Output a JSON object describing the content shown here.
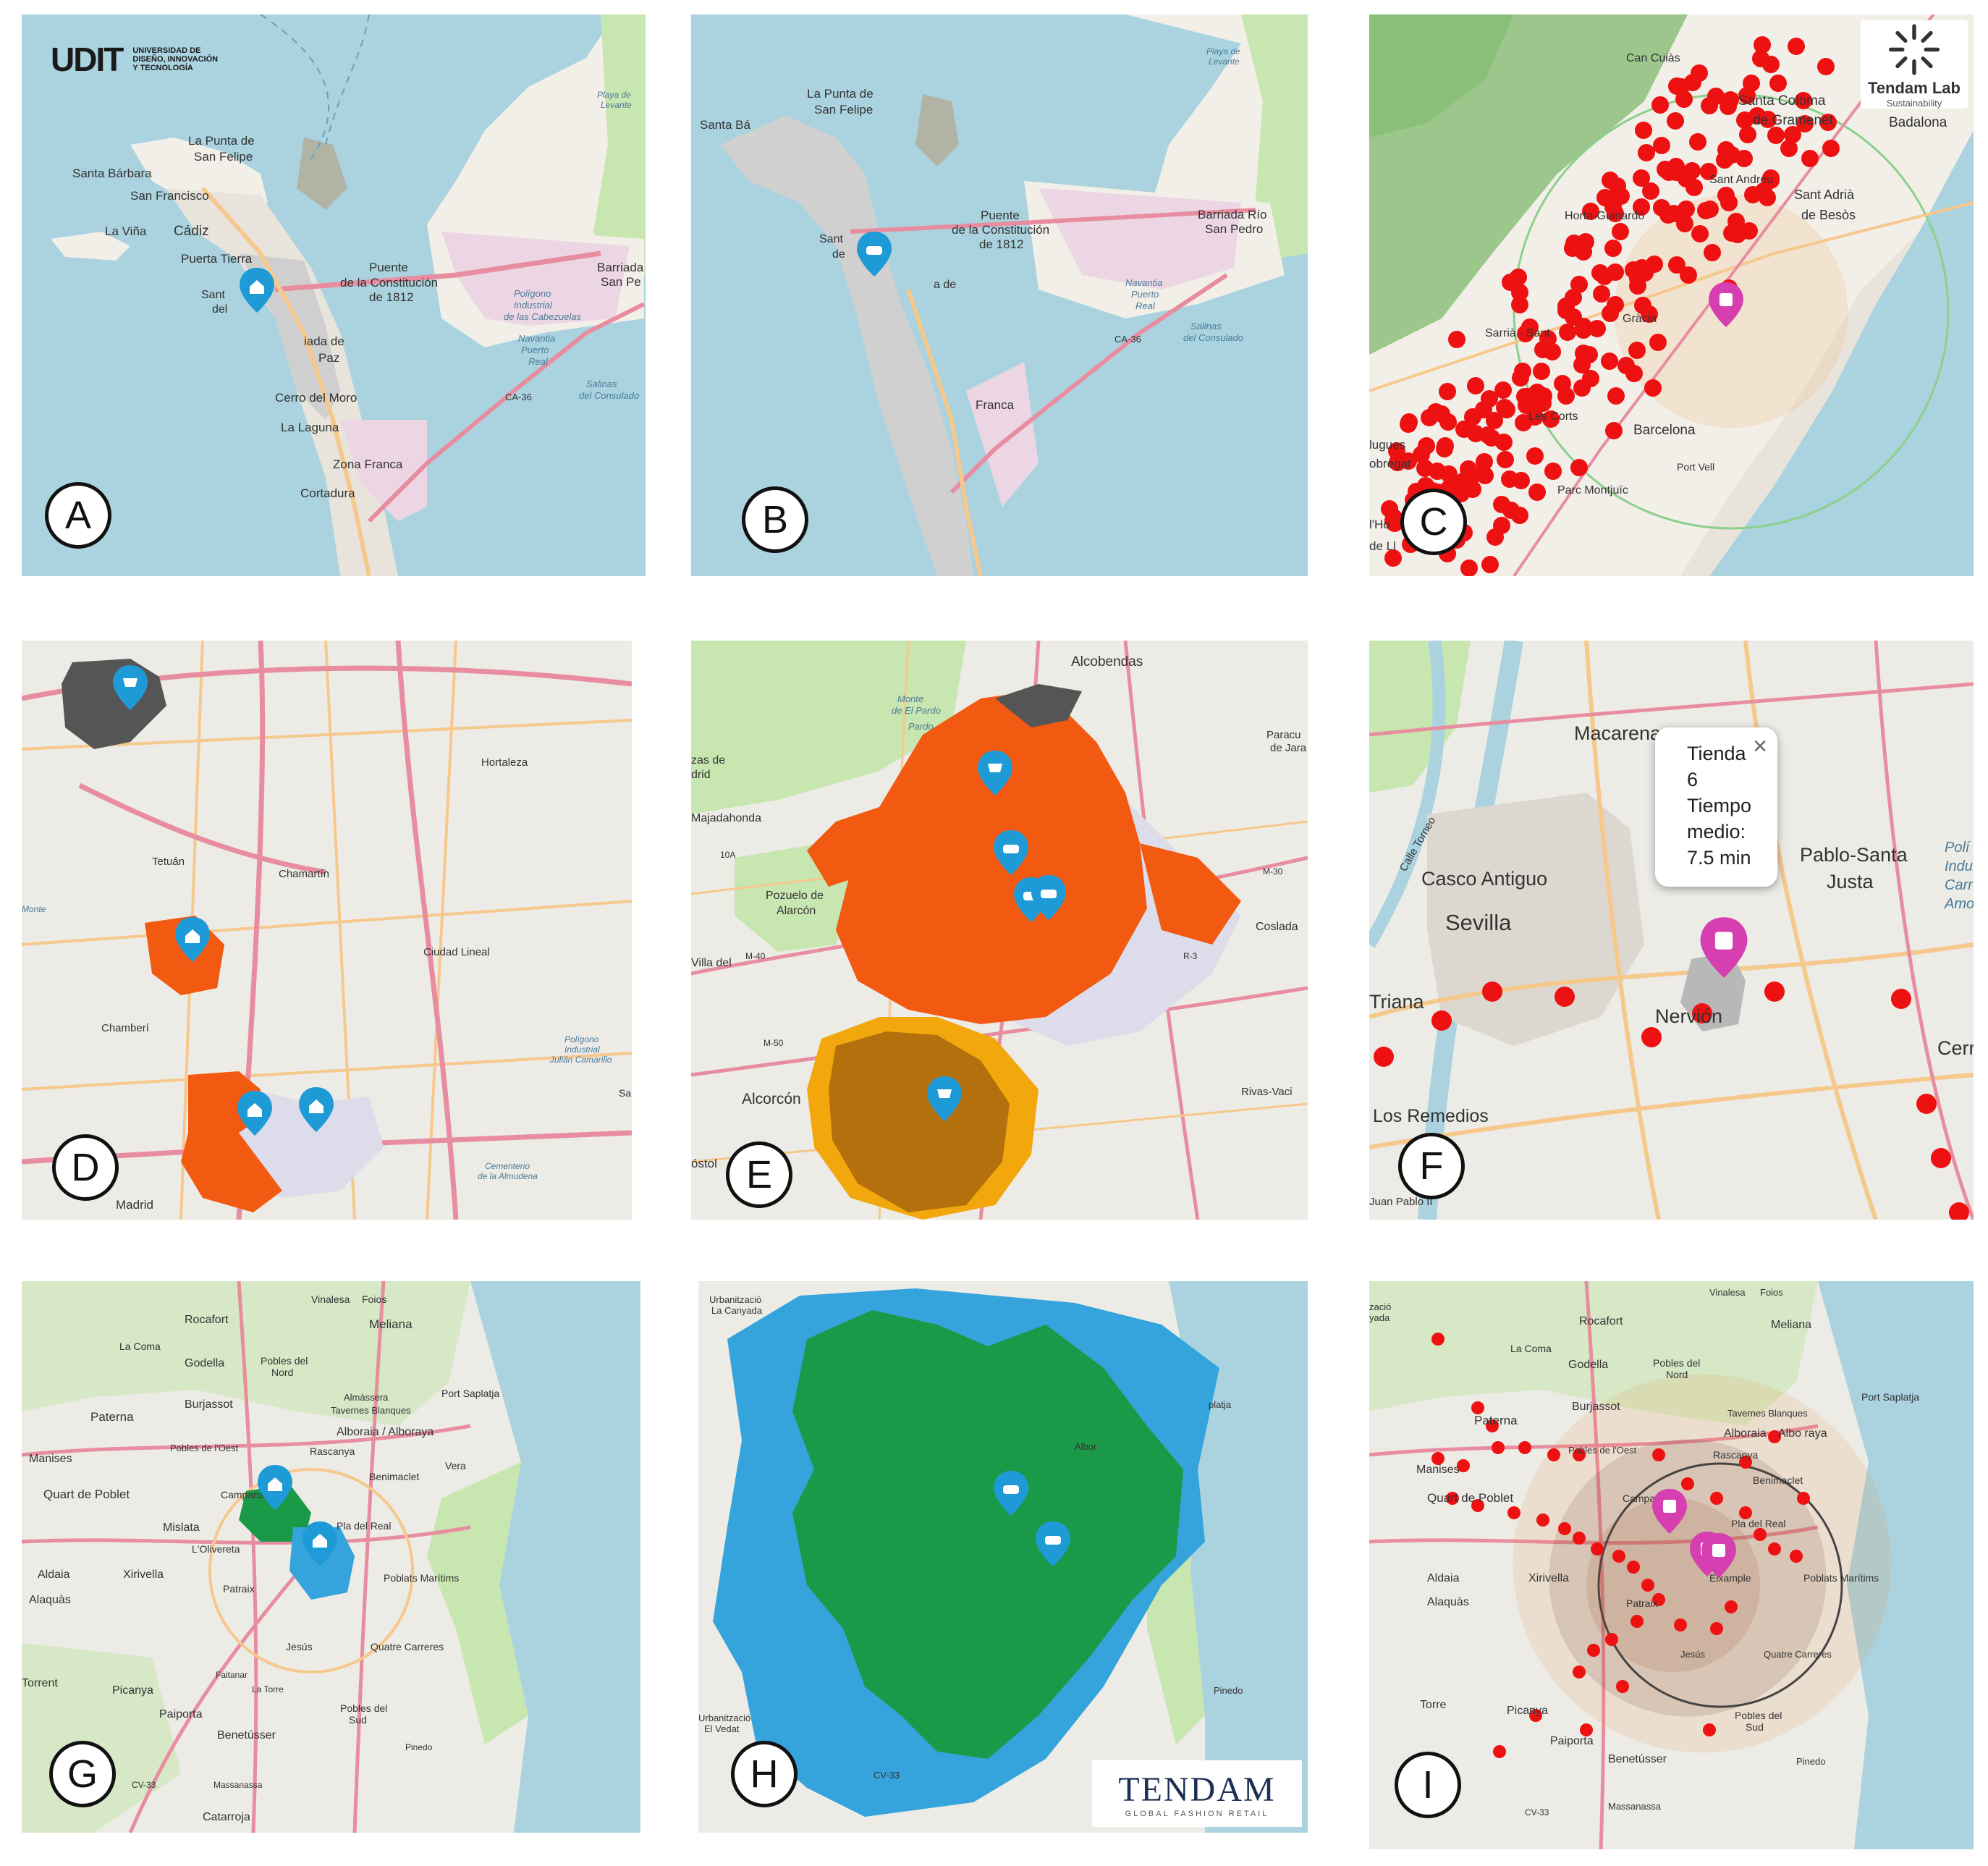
{
  "panels": {
    "A": {
      "letter": "A",
      "labels": [
        "La Punta de",
        "San Felipe",
        "Santa Bárbara",
        "San Francisco",
        "La Viña",
        "Cádiz",
        "Puerta Tierra",
        "Sant",
        "del",
        "Puente",
        "de la Constitución",
        "de 1812",
        "iada de",
        "Paz",
        "Cerro del Moro",
        "La Laguna",
        "Zona Franca",
        "Cortadura",
        "CA-36",
        "Polígono",
        "Industrial",
        "de las Cabezuelas",
        "Navantia",
        "Puerto",
        "Real",
        "Salinas",
        "del Consulado",
        "Barriada",
        "San Pe",
        "Playa de",
        "Levante"
      ]
    },
    "B": {
      "letter": "B",
      "labels": [
        "La Punta de",
        "San Felipe",
        "Santa Bá",
        "Puente",
        "de la Constitución",
        "de 1812",
        "Barriada Río",
        "San Pedro",
        "CA-36",
        "Navantia",
        "Puerto",
        "Real",
        "Salinas",
        "del Consulado",
        "Franca",
        "Playa de",
        "Levante",
        "Sant",
        "de",
        "a de"
      ]
    },
    "C": {
      "letter": "C",
      "labels": [
        "Can Cuiàs",
        "Santa Coloma",
        "de Gramenet",
        "Badalona",
        "Sant Adrià",
        "de Besòs",
        "Sant Andreu",
        "Horta-Guinardó",
        "Gràcia",
        "Sarrià - Sant",
        "Les Corts",
        "Barcelona",
        "Port Vell",
        "Parc Montjuïc",
        "lugues",
        "obregat",
        "l'Ho",
        "de Ll"
      ]
    },
    "D": {
      "letter": "D",
      "labels": [
        "Hortaleza",
        "Tetuán",
        "Chamartín",
        "Ciudad Lineal",
        "Chamberí",
        "Madrid",
        "Polígono",
        "Industrial",
        "Julián Camarillo",
        "Cementerio",
        "de la Almudena",
        "Monte",
        "Sal"
      ]
    },
    "E": {
      "letter": "E",
      "labels": [
        "Alcobendas",
        "Monte",
        "de El Pardo",
        "Paracu",
        "de Jara",
        "Pozuelo de",
        "Alarcón",
        "Majadahonda",
        "Villa del",
        "Coslada",
        "Alcorcón",
        "Rivas-Vaci",
        "óstol",
        "zas de",
        "drid",
        "10A",
        "M-40",
        "M-30",
        "M-50",
        "R-3",
        "Pardo"
      ]
    },
    "F": {
      "letter": "F",
      "labels": [
        "Macarena",
        "Casco Antiguo",
        "Sevilla",
        "Pablo-Santa",
        "Justa",
        "Triana",
        "Nervión",
        "Los Remedios",
        "Cerro",
        "Calle Torneo",
        "Polí",
        "Indu",
        "Carr",
        "Amo",
        "Juan Pablo II"
      ],
      "popup": {
        "lines": [
          "Tienda",
          "6",
          "Tiempo",
          "medio:",
          "7.5 min"
        ],
        "close": "×"
      }
    },
    "G": {
      "letter": "G",
      "labels": [
        "Vinalesa",
        "Foios",
        "Rocafort",
        "Meliana",
        "La Coma",
        "Godella",
        "Pobles del",
        "Nord",
        "Burjassot",
        "Almàssera",
        "Port Saplatja",
        "Tavernes Blanques",
        "Paterna",
        "Alboraia / Alboraya",
        "Pobles de l'Oest",
        "Rascanya",
        "Manises",
        "Benimaclet",
        "Vera",
        "Quart de Poblet",
        "Campanar",
        "Mislata",
        "Pla del Real",
        "L'Olivereta",
        "Aldaia",
        "Xirivella",
        "Poblats Marítims",
        "Alaquàs",
        "Patraix",
        "Jesús",
        "Quatre Carreres",
        "Torrent",
        "Picanya",
        "Faitanar",
        "La Torre",
        "Paiporta",
        "Pobles del",
        "Sud",
        "Benetússer",
        "Pinedo",
        "Massanassa",
        "Catarroja",
        "CV-33"
      ]
    },
    "H": {
      "letter": "H",
      "labels": [
        "Urbanització",
        "La Canyada",
        "Urbanització",
        "El Vedat",
        "platja",
        "CV-33",
        "Pinedo",
        "Albor"
      ],
      "logo": {
        "name": "TENDAM",
        "tagline": "GLOBAL FASHION RETAIL"
      }
    },
    "I": {
      "letter": "I",
      "labels": [
        "Vinalesa",
        "Foios",
        "Meliana",
        "zació",
        "yada",
        "Rocafort",
        "La Coma",
        "Godella",
        "Pobles del",
        "Nord",
        "Burjassot",
        "Port Saplatja",
        "Tavernes Blanques",
        "Paterna",
        "Alboraia",
        "Albo raya",
        "Pobles de l'Oest",
        "Rascanya",
        "Manises",
        "Benimaclet",
        "Quart de Poblet",
        "Campanar",
        "Pla del Real",
        "Aldaia",
        "Xirivella",
        "Eixample",
        "Poblats Marítims",
        "Alaquàs",
        "Patraix",
        "Jesús",
        "Quatre Carreres",
        "Torre",
        "Picanya",
        "Paiporta",
        "Pobles del",
        "Sud",
        "Benetússer",
        "Pinedo",
        "Massanassa",
        "CV-33"
      ]
    }
  },
  "logos": {
    "udit": {
      "mark": "UDIT",
      "lines": [
        "UNIVERSIDAD DE",
        "DISEÑO, INNOVACIÓN",
        "Y TECNOLOGÍA"
      ]
    },
    "tendamlab": {
      "name": "Tendam Lab",
      "sub": "Sustainability"
    }
  },
  "colors": {
    "water": "#aad3df",
    "land": "#f2efe9",
    "park": "#c8e6b0",
    "forest": "#9cc68b",
    "industrial": "#ecd6e4",
    "road_major": "#e8a0b0",
    "road_secondary": "#f6c88c",
    "isochrone_gray": "#c8c8c8",
    "marker_blue": "#1e9bd7",
    "marker_pink": "#d63fb0",
    "store_red": "#ee1111",
    "iso_orange": "#f25a12",
    "iso_lavender": "#dcdcea",
    "iso_darkgray": "#555555",
    "iso_brown": "#b3700c",
    "iso_yellow": "#f2a80c",
    "iso_green": "#1a9a48",
    "iso_skyblue": "#35a4dc",
    "ring_orange": "#f28a28",
    "ring_dark": "#444444"
  },
  "icons": {
    "A": [
      "home-marker-icon"
    ],
    "B": [
      "car-marker-icon"
    ],
    "C": [
      "train-marker-icon"
    ],
    "D": [
      "cart-marker-icon",
      "home-marker-icon",
      "home-marker-icon",
      "home-marker-icon"
    ],
    "E": [
      "cart-marker-icon",
      "car-marker-icon",
      "car-marker-icon",
      "car-marker-icon",
      "cart-marker-icon"
    ],
    "F": [
      "train-marker-icon"
    ],
    "G": [
      "home-marker-icon",
      "home-marker-icon"
    ],
    "H": [
      "car-marker-icon",
      "car-marker-icon"
    ],
    "I": [
      "train-marker-icon",
      "train-marker-icon",
      "train-marker-icon"
    ]
  }
}
